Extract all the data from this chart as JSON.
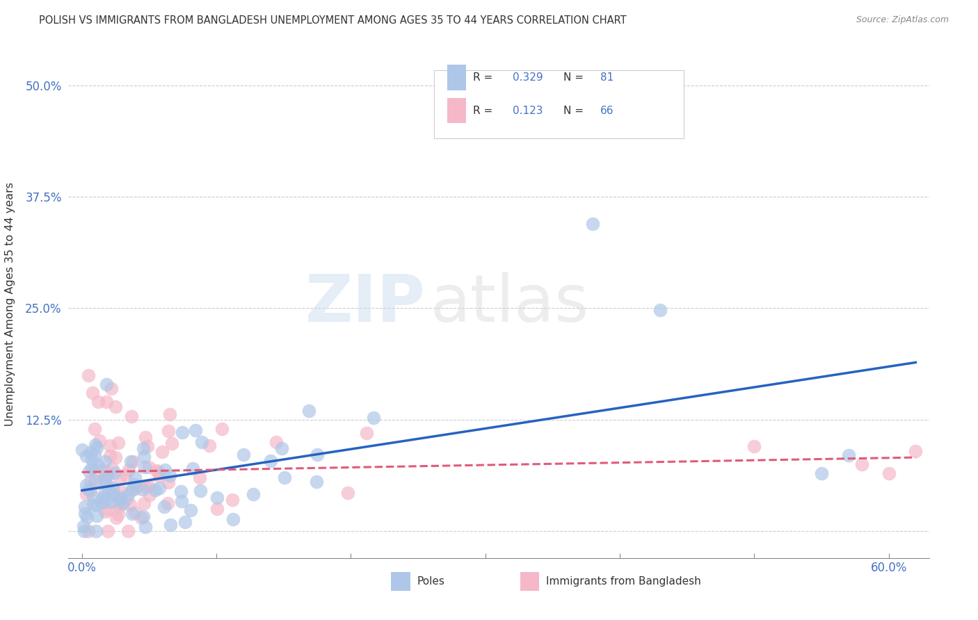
{
  "title": "POLISH VS IMMIGRANTS FROM BANGLADESH UNEMPLOYMENT AMONG AGES 35 TO 44 YEARS CORRELATION CHART",
  "source": "Source: ZipAtlas.com",
  "ylabel_label": "Unemployment Among Ages 35 to 44 years",
  "xlim": [
    -0.01,
    0.63
  ],
  "ylim": [
    -0.03,
    0.54
  ],
  "poles_color": "#aec6e8",
  "poles_line_color": "#2563c0",
  "bangladesh_color": "#f4b8c8",
  "bangladesh_line_color": "#e05a7a",
  "poles_R": 0.329,
  "poles_N": 81,
  "bangladesh_R": 0.123,
  "bangladesh_N": 66,
  "legend_label_poles": "Poles",
  "legend_label_bangladesh": "Immigrants from Bangladesh",
  "watermark_zip": "ZIP",
  "watermark_atlas": "atlas"
}
